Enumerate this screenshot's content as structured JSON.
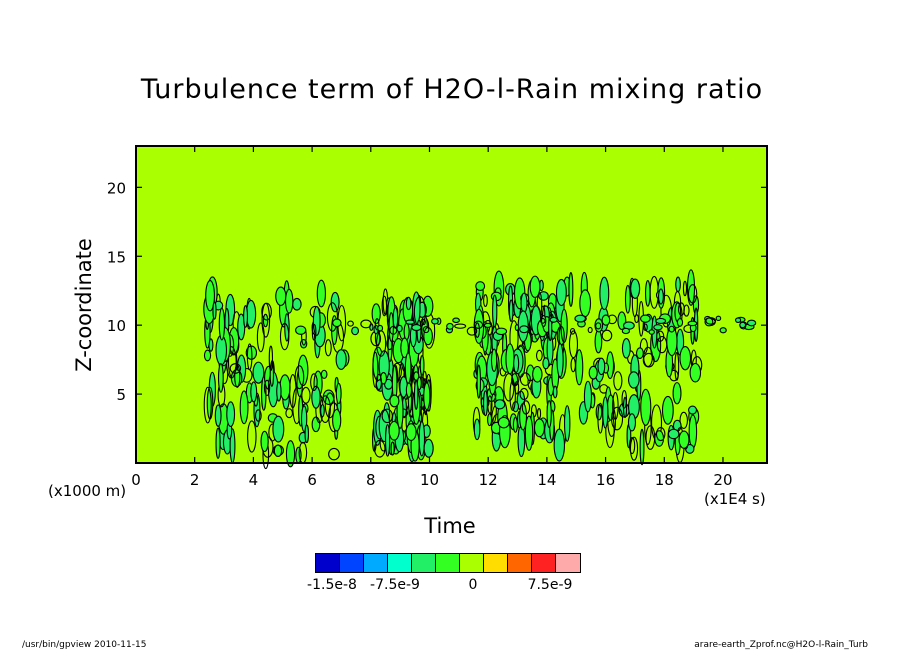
{
  "title": "Turbulence term of H2O-l-Rain mixing ratio",
  "chart_data": {
    "type": "heatmap",
    "title": "Turbulence term of H2O-l-Rain mixing ratio",
    "xlabel": "Time",
    "x_unit": "(x1E4 s)",
    "ylabel": "Z-coordinate",
    "y_unit": "(x1000 m)",
    "xlim": [
      0,
      21.5
    ],
    "ylim": [
      0,
      23
    ],
    "x_ticks": [
      0,
      2,
      4,
      6,
      8,
      10,
      12,
      14,
      16,
      18,
      20
    ],
    "y_ticks": [
      5,
      10,
      15,
      20
    ],
    "background_level": "0",
    "background_color": "#aaff00",
    "colorbar": {
      "colors": [
        "#0000cc",
        "#0044ff",
        "#00aaff",
        "#00ffcc",
        "#22ee66",
        "#33ff22",
        "#aaff00",
        "#ffdd00",
        "#ff6600",
        "#ff2222",
        "#ffaaaa"
      ],
      "labels": [
        "-1.5e-8",
        "-7.5e-9",
        "0",
        "7.5e-9"
      ]
    },
    "regions": [
      {
        "x": [
          2.4,
          7.1
        ],
        "y": [
          0.5,
          12.5
        ],
        "note": "dense positive/negative patches"
      },
      {
        "x": [
          8.1,
          10.0
        ],
        "y": [
          1.0,
          12.0
        ],
        "note": "patches"
      },
      {
        "x": [
          11.6,
          14.2
        ],
        "y": [
          1.5,
          13.0
        ],
        "note": "patches"
      },
      {
        "x": [
          13.8,
          19.2
        ],
        "y": [
          1.0,
          13.0
        ],
        "note": "patches"
      },
      {
        "x": [
          6.8,
          21.5
        ],
        "y": [
          9.5,
          10.5
        ],
        "note": "thin layer near 10 km"
      }
    ]
  },
  "footer": {
    "left": "/usr/bin/gpview   2010-11-15",
    "right": "arare-earth_Zprof.nc@H2O-l-Rain_Turb"
  }
}
